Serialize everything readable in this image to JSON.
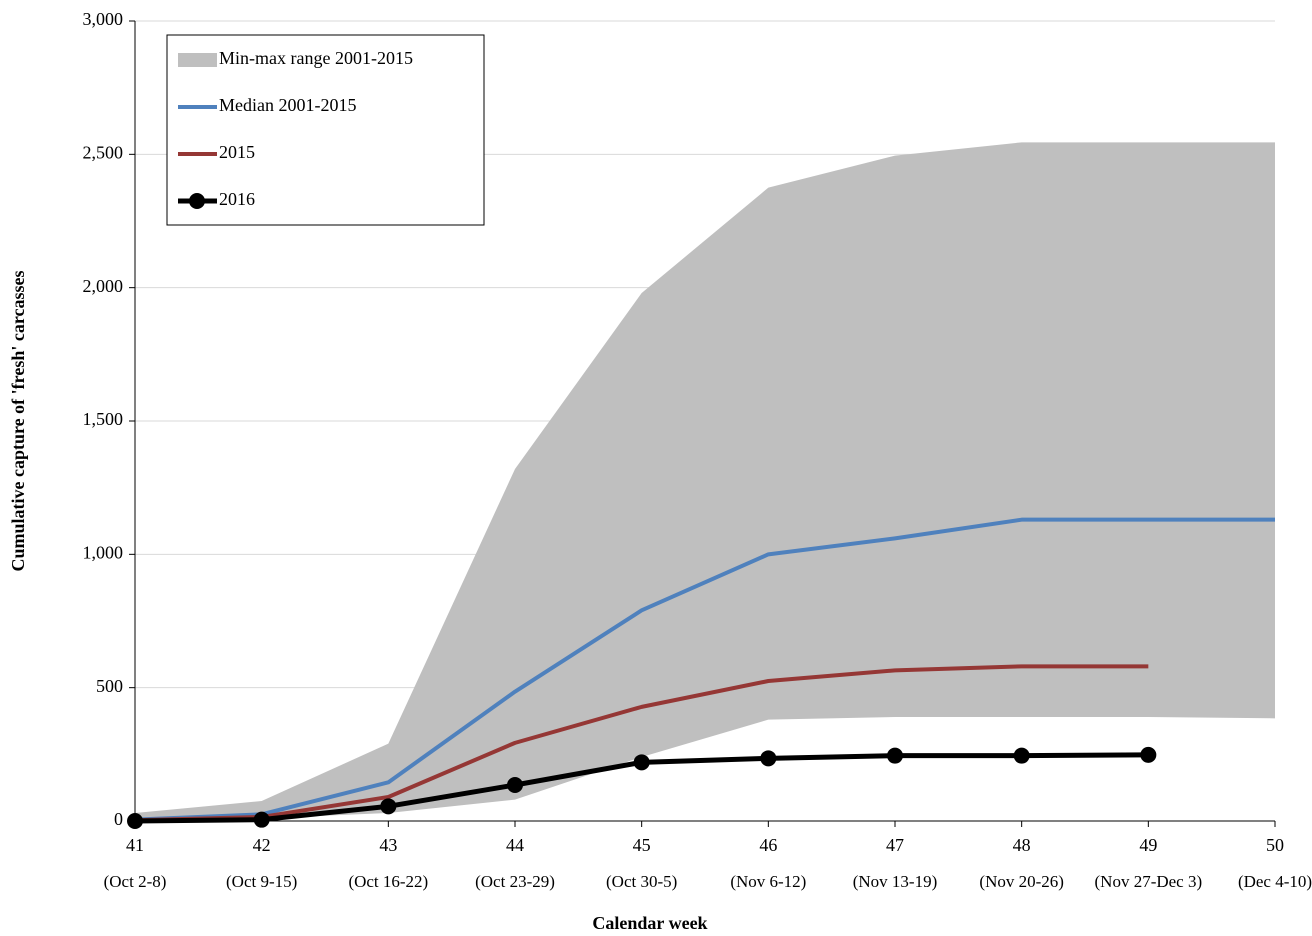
{
  "chart_data": {
    "type": "line",
    "x_label": "Calendar week",
    "y_label": "Cumulative capture of 'fresh' carcasses",
    "x": [
      41,
      42,
      43,
      44,
      45,
      46,
      47,
      48,
      49,
      50
    ],
    "xlim": [
      41,
      50
    ],
    "xticks": [
      41,
      42,
      43,
      44,
      45,
      46,
      47,
      48,
      49,
      50
    ],
    "xtick_dates": [
      "(Oct 2-8)",
      "(Oct 9-15)",
      "(Oct 16-22)",
      "(Oct 23-29)",
      "(Oct 30-5)",
      "(Nov 6-12)",
      "(Nov 13-19)",
      "(Nov 20-26)",
      "(Nov 27-Dec 3)",
      "(Dec 4-10)"
    ],
    "ylim": [
      0,
      3000
    ],
    "yticks": [
      0,
      500,
      {
        "value": 1000,
        "label": "1,000"
      },
      {
        "value": 1500,
        "label": "1,500"
      },
      {
        "value": 2000,
        "label": "2,000"
      },
      {
        "value": 2500,
        "label": "2,500"
      },
      {
        "value": 3000,
        "label": "3,000"
      }
    ],
    "grid": true,
    "legend": "upper-left",
    "range": {
      "name": "Min-max range 2001-2015",
      "color": "#bfbfbf",
      "lower": [
        5,
        10,
        30,
        80,
        240,
        380,
        390,
        390,
        390,
        385
      ],
      "upper": [
        30,
        75,
        290,
        1320,
        1980,
        2375,
        2495,
        2545,
        2545,
        2545
      ]
    },
    "series": [
      {
        "name": "Median 2001-2015",
        "color": "#4f81bd",
        "values": [
          5,
          25,
          145,
          485,
          790,
          1000,
          1060,
          1130,
          1130,
          1130
        ]
      },
      {
        "name": "2015",
        "color": "#953735",
        "values": [
          3,
          15,
          90,
          293,
          428,
          525,
          565,
          580,
          580,
          null
        ]
      },
      {
        "name": "2016",
        "color": "#000000",
        "markers": true,
        "values": [
          0,
          5,
          55,
          135,
          220,
          235,
          245,
          245,
          248,
          null
        ]
      }
    ]
  }
}
